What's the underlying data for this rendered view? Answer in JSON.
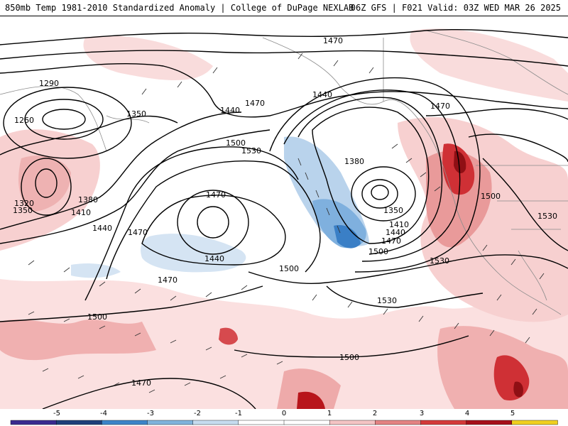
{
  "header": {
    "title": "850mb Temp 1981-2010 Standardized Anomaly | College of DuPage NEXLAB",
    "run_info": "06Z GFS | F021 Valid: 03Z WED MAR 26 2025"
  },
  "contour_labels": [
    "1290",
    "1260",
    "1350",
    "1320",
    "1350",
    "1380",
    "1410",
    "1440",
    "1470",
    "1440",
    "1470",
    "1500",
    "1530",
    "1470",
    "1440",
    "1470",
    "1500",
    "1500",
    "1440",
    "1470",
    "1380",
    "1350",
    "1410",
    "1440",
    "1470",
    "1500",
    "1530",
    "1530",
    "1470",
    "1500",
    "1530",
    "1470",
    "1500"
  ],
  "colorbar": {
    "ticks": [
      "-5",
      "-4",
      "-3",
      "-2",
      "-1",
      "0",
      "1",
      "2",
      "3",
      "4",
      "5"
    ],
    "colors": [
      "#3a2a8f",
      "#1f3f7a",
      "#3c84c8",
      "#7fb3dc",
      "#c6dcef",
      "#ffffff",
      "#ffffff",
      "#f4c4c4",
      "#e48383",
      "#d43a3a",
      "#a6101a",
      "#f0d020"
    ]
  },
  "palette": {
    "anom_light_red": "#f7d0d0",
    "anom_red": "#e98d8d",
    "anom_dark_red": "#c81e24",
    "anom_deep_red": "#8f0f14",
    "anom_light_blue": "#c9ddf0",
    "anom_blue": "#7fb0de",
    "anom_dark_blue": "#3a7fc6"
  }
}
